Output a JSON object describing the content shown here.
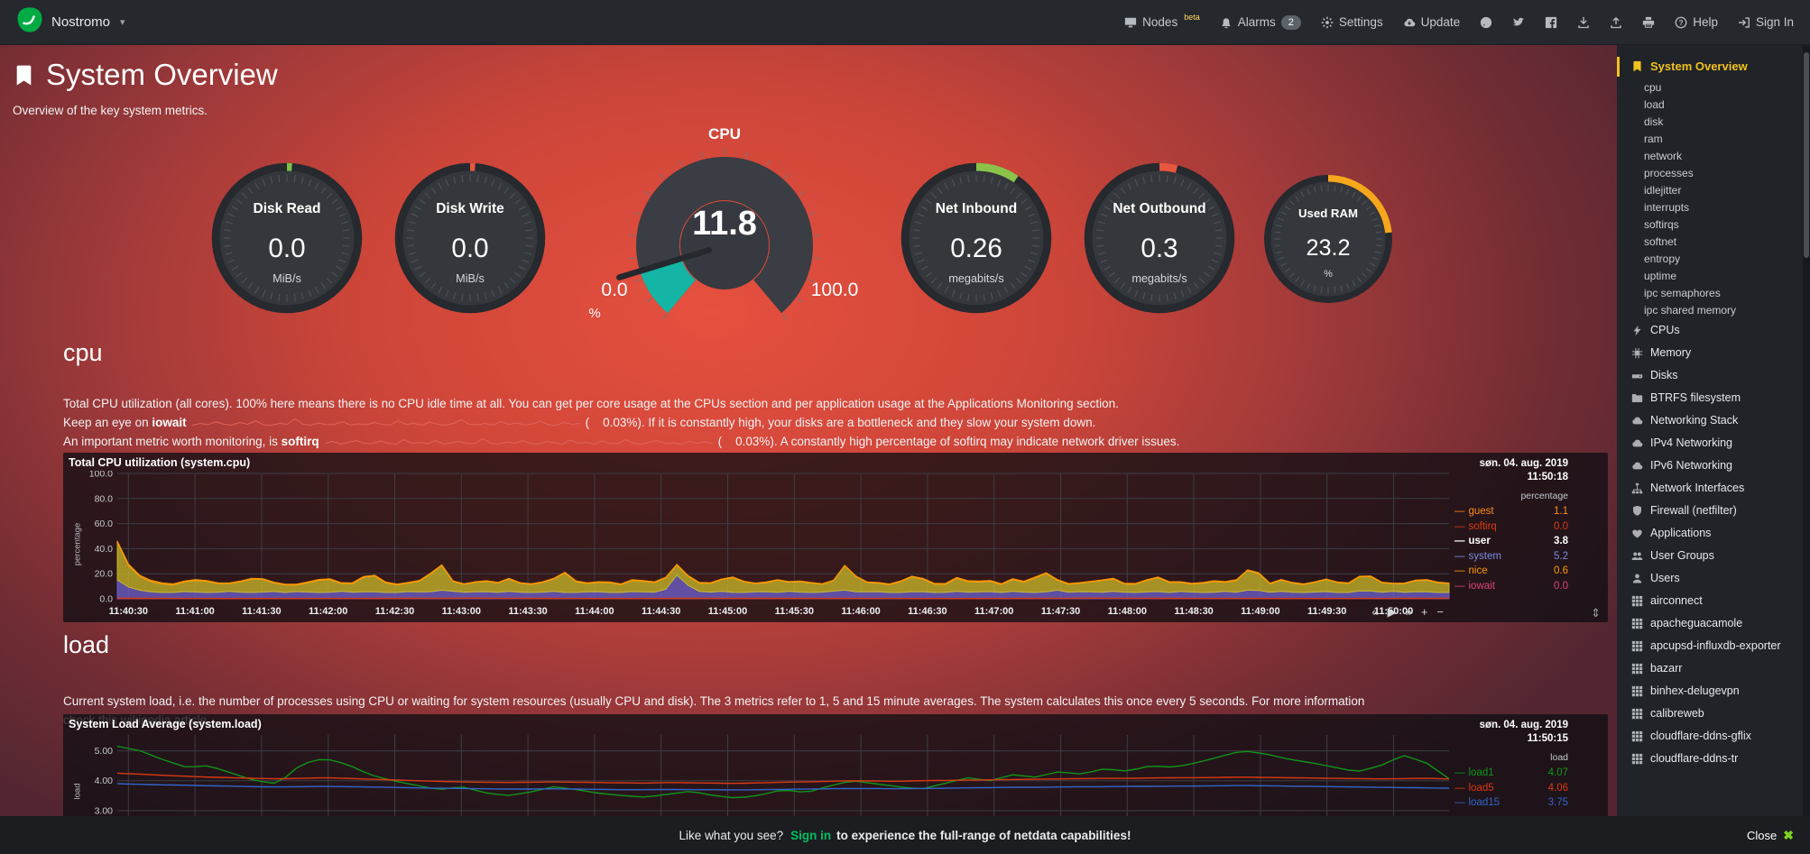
{
  "navbar": {
    "brand": "Nostromo",
    "nodes_label": "Nodes",
    "nodes_beta": "beta",
    "alarms_label": "Alarms",
    "alarms_count": "2",
    "settings_label": "Settings",
    "update_label": "Update",
    "help_label": "Help",
    "signin_label": "Sign In"
  },
  "header": {
    "title": "System Overview",
    "subtitle": "Overview of the key system metrics."
  },
  "gauges": [
    {
      "kind": "pie",
      "id": "disk-read",
      "label": "Disk Read",
      "value": "0.0",
      "unit": "MiB/s",
      "color": "#7ac143",
      "arc_deg": 4
    },
    {
      "kind": "pie",
      "id": "disk-write",
      "label": "Disk Write",
      "value": "0.0",
      "unit": "MiB/s",
      "color": "#e8563f",
      "arc_deg": 4
    },
    {
      "kind": "gauge",
      "id": "cpu",
      "title": "CPU",
      "value": "11.8",
      "min": "0.0",
      "max": "100.0",
      "unit": "%",
      "color": "#14b5a5"
    },
    {
      "kind": "pie",
      "id": "net-inbound",
      "label": "Net Inbound",
      "value": "0.26",
      "unit": "megabits/s",
      "color": "#8bc34a",
      "arc_deg": 34
    },
    {
      "kind": "pie",
      "id": "net-outbound",
      "label": "Net Outbound",
      "value": "0.3",
      "unit": "megabits/s",
      "color": "#e8563f",
      "arc_deg": 14
    },
    {
      "kind": "pie",
      "id": "used-ram",
      "label": "Used RAM",
      "value": "23.2",
      "unit": "%",
      "color": "#f7a71b",
      "arc_deg": 84
    }
  ],
  "cpu_section": {
    "heading": "cpu",
    "desc1": "Total CPU utilization (all cores). 100% here means there is no CPU idle time at all. You can get per core usage at the CPUs section and per application usage at the Applications Monitoring section.",
    "line2_pre": "Keep an eye on",
    "line2_metric": "iowait",
    "line2_value": "(    0.03%).",
    "line2_post": "If it is constantly high, your disks are a bottleneck and they slow your system down.",
    "line3_pre": "An important metric worth monitoring, is",
    "line3_metric": "softirq",
    "line3_value": "(    0.03%).",
    "line3_post": "A constantly high percentage of softirq may indicate network driver issues.",
    "sparklines": {
      "iowait": [
        0.1,
        0.3,
        0.15,
        0.5,
        0.2,
        0.1,
        0.4,
        0.2,
        0.6,
        0.15,
        0.1,
        0.3,
        0.2,
        0.8,
        0.2,
        0.1,
        0.35,
        0.15,
        0.2,
        0.5,
        0.1,
        0.25,
        0.15,
        0.4,
        0.2,
        0.1,
        0.6,
        0.2,
        0.3,
        0.1,
        0.45,
        0.2,
        0.1,
        0.3,
        0.7,
        0.2,
        0.15,
        0.3,
        0.1,
        0.5,
        0.2,
        0.35,
        0.1,
        0.25,
        0.55,
        0.15,
        0.1,
        0.4,
        0.2,
        0.3
      ],
      "softirq": [
        0.2,
        0.4,
        0.1,
        0.3,
        0.5,
        0.2,
        0.15,
        0.45,
        0.2,
        0.1,
        0.6,
        0.2,
        0.3,
        0.15,
        0.5,
        0.1,
        0.25,
        0.4,
        0.15,
        0.2,
        0.7,
        0.2,
        0.1,
        0.35,
        0.2,
        0.5,
        0.15,
        0.1,
        0.4,
        0.25,
        0.1,
        0.55,
        0.2,
        0.3,
        0.1,
        0.45,
        0.2,
        0.15,
        0.6,
        0.2,
        0.1,
        0.3,
        0.5,
        0.15,
        0.25,
        0.1,
        0.4,
        0.2,
        0.35,
        0.2
      ]
    }
  },
  "load_section": {
    "heading": "load",
    "desc": "Current system load, i.e. the number of processes using CPU or waiting for system resources (usually CPU and disk). The 3 metrics refer to 1, 5 and 15 minute averages. The system calculates this once every 5 seconds. For more information check this wikipedia article"
  },
  "chart_data": [
    {
      "id": "cpu_chart",
      "type": "area",
      "stacked": true,
      "title": "Total CPU utilization (system.cpu)",
      "ylabel": "percentage",
      "ylim": [
        0,
        100
      ],
      "yticks": [
        0,
        20,
        40,
        60,
        80,
        100
      ],
      "ytick_labels": [
        "0.0",
        "20.0",
        "40.0",
        "60.0",
        "80.0",
        "100.0"
      ],
      "x_labels": [
        "11:40:30",
        "11:41:00",
        "11:41:30",
        "11:42:00",
        "11:42:30",
        "11:43:00",
        "11:43:30",
        "11:44:00",
        "11:44:30",
        "11:45:00",
        "11:45:30",
        "11:46:00",
        "11:46:30",
        "11:47:00",
        "11:47:30",
        "11:48:00",
        "11:48:30",
        "11:49:00",
        "11:49:30",
        "11:50:00"
      ],
      "legend_date": "søn. 04. aug. 2019",
      "legend_time": "11:50:18",
      "legend_unit": "percentage",
      "series": [
        {
          "name": "system",
          "color": "#6f62d0",
          "values": [
            15,
            8,
            6,
            5,
            5,
            6,
            5,
            5,
            6,
            5,
            5,
            6,
            5,
            6,
            5,
            5,
            6,
            5,
            6,
            5,
            5,
            6,
            5,
            7,
            6,
            5,
            6,
            5,
            6,
            5,
            5,
            6,
            5,
            5,
            6,
            5,
            5,
            6,
            5,
            6,
            20,
            7,
            5,
            6,
            5,
            5,
            6,
            5,
            6,
            5,
            5,
            6,
            7,
            5,
            6,
            5,
            5,
            6,
            5,
            5,
            6,
            5,
            6,
            5,
            6,
            5,
            5,
            7,
            5,
            6,
            5,
            6,
            5,
            5,
            6,
            5,
            6,
            5,
            5,
            6,
            5,
            8,
            5,
            6,
            5,
            5,
            6,
            5,
            5,
            7,
            5,
            6,
            5,
            6,
            5,
            5
          ]
        },
        {
          "name": "user",
          "color": "#cdbb2a",
          "values": [
            30,
            14,
            9,
            7,
            6,
            8,
            10,
            7,
            6,
            9,
            12,
            7,
            6,
            5,
            9,
            11,
            6,
            7,
            15,
            8,
            6,
            7,
            10,
            22,
            7,
            6,
            9,
            7,
            10,
            6,
            7,
            9,
            16,
            6,
            7,
            8,
            6,
            10,
            7,
            9,
            8,
            7,
            6,
            9,
            12,
            7,
            6,
            10,
            7,
            9,
            6,
            7,
            21,
            8,
            7,
            6,
            9,
            13,
            7,
            6,
            11,
            7,
            9,
            6,
            10,
            7,
            17,
            8,
            6,
            7,
            9,
            10,
            6,
            7,
            12,
            8,
            7,
            6,
            9,
            7,
            10,
            19,
            6,
            9,
            7,
            6,
            10,
            8,
            7,
            14,
            8,
            6,
            7,
            10,
            8,
            7
          ]
        },
        {
          "name": "nice",
          "color": "#FF9900",
          "values": [
            1.2,
            0.6,
            0.8,
            0.5,
            0.7,
            0.6,
            0.5,
            0.8,
            0.6,
            0.7,
            0.5,
            0.6
          ]
        },
        {
          "name": "softirq",
          "color": "#DC3912",
          "line": true,
          "values": [
            0.4,
            0.2,
            0.3,
            0.5,
            0.2,
            0.4,
            0.3,
            0.2,
            0.5,
            0.3,
            0.2,
            0.4
          ]
        }
      ],
      "legend_entries": [
        {
          "name": "guest",
          "value": "1.1",
          "color": "#FF8C1A"
        },
        {
          "name": "softirq",
          "value": "0.0",
          "color": "#DC3912"
        },
        {
          "name": "user",
          "value": "3.8",
          "color": "#FFFFFF",
          "bold": true
        },
        {
          "name": "system",
          "value": "5.2",
          "color": "#7B8CDE"
        },
        {
          "name": "nice",
          "value": "0.6",
          "color": "#FF9900"
        },
        {
          "name": "iowait",
          "value": "0.0",
          "color": "#DD4477"
        }
      ]
    },
    {
      "id": "load_chart",
      "type": "line",
      "stacked": false,
      "title": "System Load Average (system.load)",
      "ylabel": "load",
      "ylim": [
        1.7,
        5.53
      ],
      "yticks": [
        3,
        4,
        5
      ],
      "ytick_labels": [
        "3.00",
        "4.00",
        "5.00"
      ],
      "x_labels": [],
      "legend_date": "søn. 04. aug. 2019",
      "legend_time": "11:50:15",
      "legend_unit": "load",
      "series": [
        {
          "name": "load1",
          "color": "#109618",
          "line": true,
          "values": [
            5.15,
            5.0,
            4.7,
            4.45,
            4.5,
            4.25,
            4.0,
            3.9,
            4.55,
            4.75,
            4.55,
            4.2,
            4.0,
            3.85,
            3.7,
            3.8,
            3.6,
            3.5,
            3.62,
            3.8,
            3.7,
            3.58,
            3.5,
            3.45,
            3.55,
            3.65,
            3.5,
            3.42,
            3.52,
            3.7,
            3.6,
            3.82,
            4.0,
            3.9,
            3.8,
            3.72,
            3.9,
            4.1,
            4.0,
            4.2,
            4.12,
            4.3,
            4.22,
            4.4,
            4.32,
            4.5,
            4.45,
            4.6,
            4.8,
            5.0,
            4.9,
            4.72,
            4.6,
            4.45,
            4.3,
            4.5,
            4.85,
            4.6,
            4.07
          ]
        },
        {
          "name": "load5",
          "color": "#DC3912",
          "line": true,
          "values": [
            4.25,
            4.22,
            4.18,
            4.15,
            4.12,
            4.1,
            4.08,
            4.06,
            4.08,
            4.1,
            4.08,
            4.05,
            4.03,
            4.0,
            3.98,
            3.96,
            3.95,
            3.94,
            3.95,
            3.96,
            3.95,
            3.94,
            3.93,
            3.92,
            3.94,
            3.93,
            3.92,
            3.91,
            3.93,
            3.95,
            3.96,
            3.98,
            4.0,
            3.99,
            3.98,
            4.0,
            4.01,
            4.02,
            4.03,
            4.04,
            4.05,
            4.06,
            4.07,
            4.08,
            4.08,
            4.09,
            4.1,
            4.1,
            4.11,
            4.12,
            4.11,
            4.1,
            4.09,
            4.08,
            4.07,
            4.06,
            4.07,
            4.08,
            4.06
          ]
        },
        {
          "name": "load15",
          "color": "#3366CC",
          "line": true,
          "values": [
            3.9,
            3.88,
            3.86,
            3.85,
            3.83,
            3.82,
            3.8,
            3.79,
            3.8,
            3.81,
            3.8,
            3.79,
            3.78,
            3.76,
            3.75,
            3.74,
            3.73,
            3.72,
            3.72,
            3.73,
            3.72,
            3.71,
            3.7,
            3.7,
            3.71,
            3.7,
            3.7,
            3.69,
            3.7,
            3.71,
            3.72,
            3.73,
            3.74,
            3.74,
            3.73,
            3.74,
            3.75,
            3.76,
            3.77,
            3.78,
            3.78,
            3.79,
            3.8,
            3.8,
            3.81,
            3.81,
            3.82,
            3.82,
            3.83,
            3.84,
            3.83,
            3.82,
            3.81,
            3.8,
            3.79,
            3.78,
            3.77,
            3.76,
            3.75
          ]
        }
      ],
      "legend_entries": [
        {
          "name": "load1",
          "value": "4.07",
          "color": "#109618"
        },
        {
          "name": "load5",
          "value": "4.06",
          "color": "#DC3912"
        },
        {
          "name": "load15",
          "value": "3.75",
          "color": "#3366CC"
        }
      ]
    }
  ],
  "sidebar": {
    "items": [
      {
        "label": "System Overview",
        "type": "main",
        "icon": "bookmark",
        "active": true
      },
      {
        "label": "cpu",
        "type": "sub"
      },
      {
        "label": "load",
        "type": "sub"
      },
      {
        "label": "disk",
        "type": "sub"
      },
      {
        "label": "ram",
        "type": "sub"
      },
      {
        "label": "network",
        "type": "sub"
      },
      {
        "label": "processes",
        "type": "sub"
      },
      {
        "label": "idlejitter",
        "type": "sub"
      },
      {
        "label": "interrupts",
        "type": "sub"
      },
      {
        "label": "softirqs",
        "type": "sub"
      },
      {
        "label": "softnet",
        "type": "sub"
      },
      {
        "label": "entropy",
        "type": "sub"
      },
      {
        "label": "uptime",
        "type": "sub"
      },
      {
        "label": "ipc semaphores",
        "type": "sub"
      },
      {
        "label": "ipc shared memory",
        "type": "sub"
      },
      {
        "label": "CPUs",
        "type": "section",
        "icon": "bolt"
      },
      {
        "label": "Memory",
        "type": "section",
        "icon": "chip"
      },
      {
        "label": "Disks",
        "type": "section",
        "icon": "hdd"
      },
      {
        "label": "BTRFS filesystem",
        "type": "section",
        "icon": "folder"
      },
      {
        "label": "Networking Stack",
        "type": "section",
        "icon": "cloud"
      },
      {
        "label": "IPv4 Networking",
        "type": "section",
        "icon": "cloud"
      },
      {
        "label": "IPv6 Networking",
        "type": "section",
        "icon": "cloud"
      },
      {
        "label": "Network Interfaces",
        "type": "section",
        "icon": "sitemap"
      },
      {
        "label": "Firewall (netfilter)",
        "type": "section",
        "icon": "shield"
      },
      {
        "label": "Applications",
        "type": "section",
        "icon": "heart"
      },
      {
        "label": "User Groups",
        "type": "section",
        "icon": "users"
      },
      {
        "label": "Users",
        "type": "section",
        "icon": "user"
      },
      {
        "label": "airconnect",
        "type": "section",
        "icon": "grid"
      },
      {
        "label": "apacheguacamole",
        "type": "section",
        "icon": "grid"
      },
      {
        "label": "apcupsd-influxdb-exporter",
        "type": "section",
        "icon": "grid"
      },
      {
        "label": "bazarr",
        "type": "section",
        "icon": "grid"
      },
      {
        "label": "binhex-delugevpn",
        "type": "section",
        "icon": "grid"
      },
      {
        "label": "calibreweb",
        "type": "section",
        "icon": "grid"
      },
      {
        "label": "cloudflare-ddns-gflix",
        "type": "section",
        "icon": "grid"
      },
      {
        "label": "cloudflare-ddns-tr",
        "type": "section",
        "icon": "grid"
      }
    ]
  },
  "footer": {
    "prefix": "Like what you see?",
    "signin": "Sign in",
    "suffix": "to experience the full-range of netdata capabilities!",
    "close_label": "Close",
    "close_icon": "✖"
  }
}
